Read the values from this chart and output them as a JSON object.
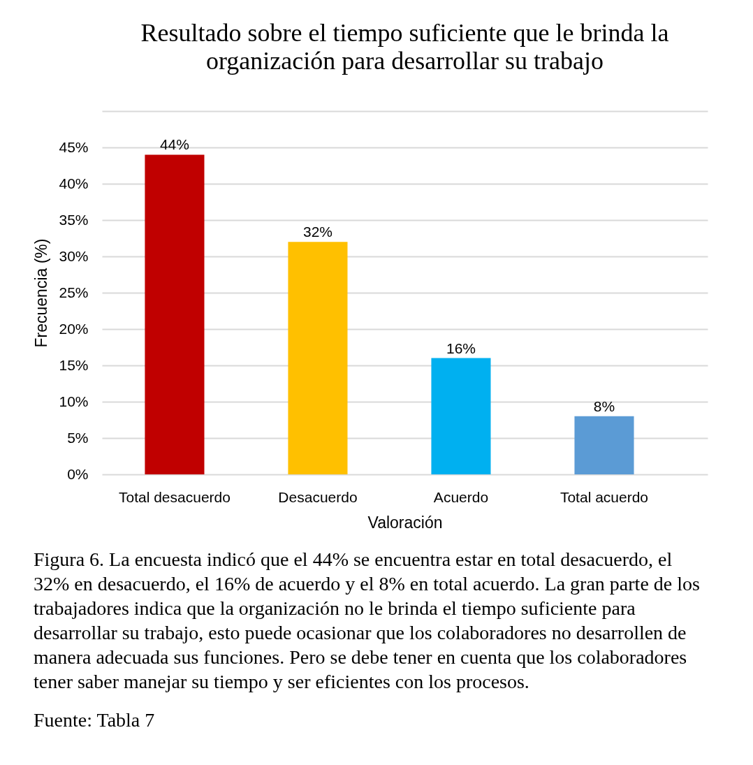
{
  "chart_data": {
    "type": "bar",
    "title": "Resultado sobre el tiempo suficiente que le brinda la organización para desarrollar su trabajo",
    "xlabel": "Valoración",
    "ylabel": "Frecuencia (%)",
    "categories": [
      "Total desacuerdo",
      "Desacuerdo",
      "Acuerdo",
      "Total acuerdo"
    ],
    "values": [
      44,
      32,
      16,
      8
    ],
    "colors": [
      "#c00000",
      "#ffc000",
      "#00b0f0",
      "#5b9bd5"
    ],
    "value_labels": [
      "44%",
      "32%",
      "16%",
      "8%"
    ],
    "ylim": [
      0,
      50
    ],
    "yticks": [
      {
        "value": 0,
        "label": "0%"
      },
      {
        "value": 5,
        "label": "5%"
      },
      {
        "value": 10,
        "label": "10%"
      },
      {
        "value": 15,
        "label": "15%"
      },
      {
        "value": 20,
        "label": "20%"
      },
      {
        "value": 25,
        "label": "25%"
      },
      {
        "value": 30,
        "label": "30%"
      },
      {
        "value": 35,
        "label": "35%"
      },
      {
        "value": 40,
        "label": "40%"
      },
      {
        "value": 45,
        "label": "45%"
      },
      {
        "value": 50,
        "label": null
      }
    ],
    "grid": "y",
    "annotations": [
      "Figura 6. La encuesta indicó que el 44% se encuentra estar en total desacuerdo, el 32% en desacuerdo, el 16% de acuerdo y el 8% en total acuerdo. La gran parte de los trabajadores indica que la organización no le brinda el tiempo suficiente para desarrollar su trabajo, esto puede ocasionar que los colaboradores no desarrollen de manera adecuada sus funciones. Pero se debe tener en cuenta que los colaboradores tener saber manejar su tiempo y ser eficientes con los procesos.",
      "Fuente: Tabla 7"
    ]
  }
}
